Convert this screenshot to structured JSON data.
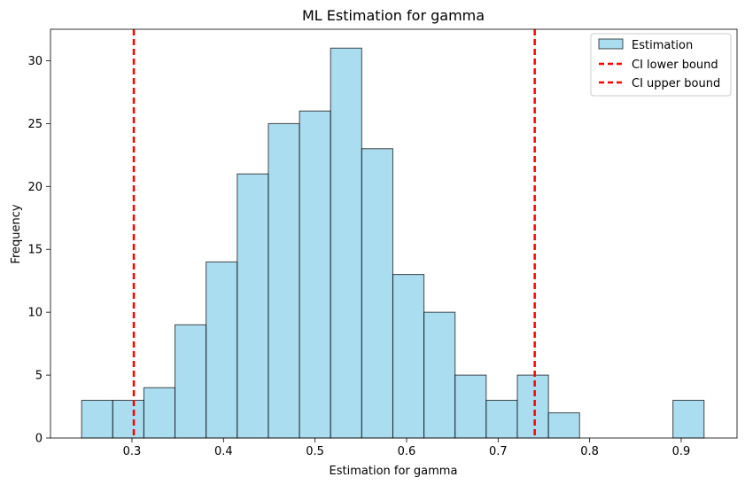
{
  "chart_data": {
    "type": "bar",
    "title": "ML Estimation for gamma",
    "xlabel": "Estimation for gamma",
    "ylabel": "Frequency",
    "xlim": [
      0.211,
      0.961
    ],
    "ylim": [
      0,
      32.5
    ],
    "xticks": [
      0.3,
      0.4,
      0.5,
      0.6,
      0.7,
      0.8,
      0.9
    ],
    "yticks": [
      0,
      5,
      10,
      15,
      20,
      25,
      30
    ],
    "bin_edges": [
      0.245,
      0.279,
      0.313,
      0.347,
      0.381,
      0.415,
      0.449,
      0.483,
      0.517,
      0.551,
      0.585,
      0.619,
      0.653,
      0.687,
      0.721,
      0.755,
      0.789,
      0.823,
      0.857,
      0.891,
      0.925
    ],
    "values": [
      3,
      3,
      4,
      9,
      14,
      21,
      25,
      26,
      31,
      23,
      13,
      10,
      5,
      3,
      5,
      2,
      0,
      0,
      0,
      3
    ],
    "bar_color": "#87ceeb",
    "series": [
      {
        "name": "Estimation"
      }
    ],
    "ci_lower": 0.302,
    "ci_upper": 0.74,
    "ci_color": "#ff0000",
    "legend": {
      "position": "upper right",
      "entries": [
        "Estimation",
        "CI lower bound",
        "CI upper bound"
      ]
    }
  }
}
